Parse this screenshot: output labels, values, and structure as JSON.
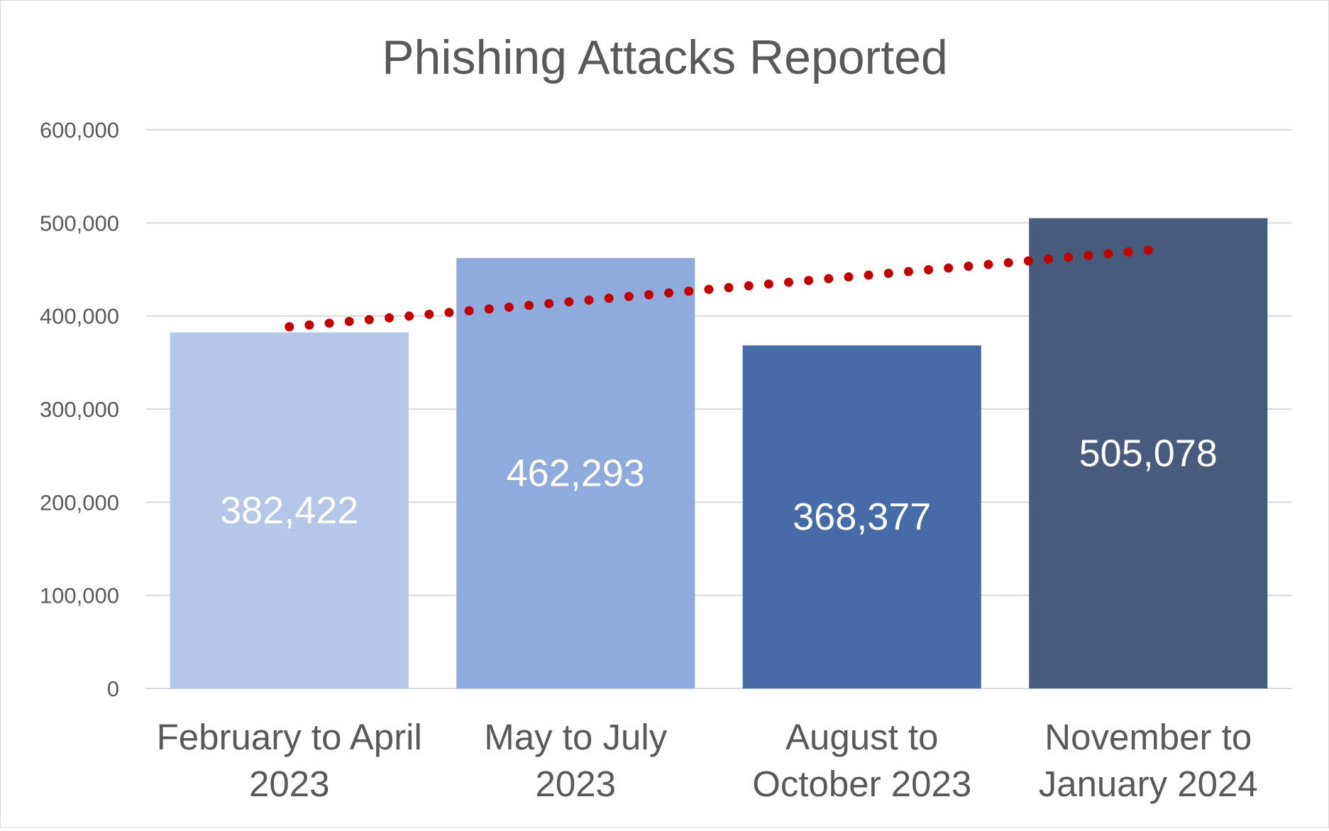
{
  "chart_data": {
    "type": "bar",
    "title": "Phishing Attacks Reported",
    "categories": [
      [
        "February to April",
        "2023"
      ],
      [
        "May to July",
        "2023"
      ],
      [
        "August to",
        "October 2023"
      ],
      [
        "November to",
        "January 2024"
      ]
    ],
    "values": [
      382422,
      462293,
      368377,
      505078
    ],
    "data_labels": [
      "382,422",
      "462,293",
      "368,377",
      "505,078"
    ],
    "bar_colors": [
      "#B4C7E7",
      "#8FAADC",
      "#476BA6",
      "#475B7D"
    ],
    "ylim": [
      0,
      600000
    ],
    "yticks": [
      0,
      100000,
      200000,
      300000,
      400000,
      500000,
      600000
    ],
    "ytick_labels": [
      "0",
      "100,000",
      "200,000",
      "300,000",
      "400,000",
      "500,000",
      "600,000"
    ],
    "grid": true,
    "legend": "none",
    "trendline": {
      "type": "linear",
      "style": "dotted",
      "color": "#C00000"
    },
    "xlabel": "",
    "ylabel": ""
  }
}
